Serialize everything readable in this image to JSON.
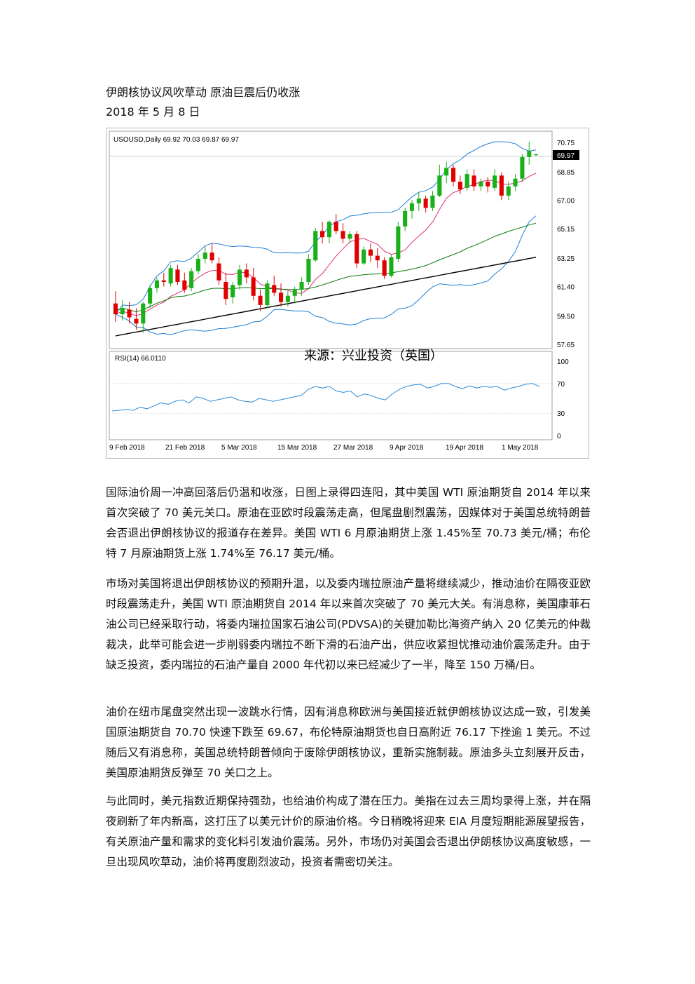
{
  "header": {
    "title": "伊朗核协议风吹草动 原油巨震后仍收涨",
    "date": "2018 年 5 月 8 日"
  },
  "chart_data": {
    "type": "candlestick",
    "symbol_label": "USOUSD,Daily  69.92 70.03 69.87 69.97",
    "current_price_label": "69.97",
    "watermark": "来源：兴业投资（英国）",
    "x_ticks": [
      "9 Feb 2018",
      "21 Feb 2018",
      "5 Mar 2018",
      "15 Mar 2018",
      "27 Mar 2018",
      "9 Apr 2018",
      "19 Apr 2018",
      "1 May 2018"
    ],
    "y_ticks": [
      "70.75",
      "68.85",
      "67.00",
      "65.15",
      "63.25",
      "61.40",
      "59.50",
      "57.65"
    ],
    "ylim": [
      57.65,
      70.75
    ],
    "candles": [
      {
        "o": 60.3,
        "h": 61.1,
        "l": 59.1,
        "c": 59.6
      },
      {
        "o": 59.6,
        "h": 60.5,
        "l": 59.2,
        "c": 60.0
      },
      {
        "o": 59.9,
        "h": 60.4,
        "l": 59.0,
        "c": 59.4
      },
      {
        "o": 59.3,
        "h": 60.0,
        "l": 58.6,
        "c": 59.0
      },
      {
        "o": 59.0,
        "h": 60.4,
        "l": 58.4,
        "c": 60.3
      },
      {
        "o": 60.3,
        "h": 61.5,
        "l": 60.0,
        "c": 61.3
      },
      {
        "o": 61.3,
        "h": 62.0,
        "l": 61.0,
        "c": 61.8
      },
      {
        "o": 61.8,
        "h": 62.3,
        "l": 61.4,
        "c": 61.7
      },
      {
        "o": 61.6,
        "h": 62.8,
        "l": 61.4,
        "c": 62.6
      },
      {
        "o": 62.5,
        "h": 62.8,
        "l": 61.5,
        "c": 61.7
      },
      {
        "o": 61.8,
        "h": 62.3,
        "l": 61.0,
        "c": 61.2
      },
      {
        "o": 61.3,
        "h": 62.6,
        "l": 61.1,
        "c": 62.4
      },
      {
        "o": 62.4,
        "h": 63.5,
        "l": 62.2,
        "c": 63.2
      },
      {
        "o": 63.2,
        "h": 64.0,
        "l": 62.9,
        "c": 63.6
      },
      {
        "o": 63.6,
        "h": 64.2,
        "l": 62.9,
        "c": 63.1
      },
      {
        "o": 62.9,
        "h": 63.3,
        "l": 61.5,
        "c": 61.8
      },
      {
        "o": 61.7,
        "h": 62.3,
        "l": 60.2,
        "c": 60.6
      },
      {
        "o": 60.7,
        "h": 61.7,
        "l": 60.3,
        "c": 61.5
      },
      {
        "o": 61.5,
        "h": 62.8,
        "l": 61.2,
        "c": 62.5
      },
      {
        "o": 62.5,
        "h": 62.9,
        "l": 61.6,
        "c": 62.0
      },
      {
        "o": 62.0,
        "h": 62.6,
        "l": 60.5,
        "c": 60.8
      },
      {
        "o": 60.8,
        "h": 61.2,
        "l": 59.8,
        "c": 60.2
      },
      {
        "o": 60.2,
        "h": 61.8,
        "l": 60.0,
        "c": 61.6
      },
      {
        "o": 61.5,
        "h": 62.1,
        "l": 60.8,
        "c": 61.0
      },
      {
        "o": 61.0,
        "h": 61.6,
        "l": 60.1,
        "c": 60.4
      },
      {
        "o": 60.4,
        "h": 61.1,
        "l": 60.1,
        "c": 60.8
      },
      {
        "o": 60.8,
        "h": 61.4,
        "l": 60.3,
        "c": 61.2
      },
      {
        "o": 61.2,
        "h": 62.0,
        "l": 60.8,
        "c": 61.7
      },
      {
        "o": 61.7,
        "h": 63.5,
        "l": 61.5,
        "c": 63.2
      },
      {
        "o": 63.1,
        "h": 65.2,
        "l": 63.0,
        "c": 65.0
      },
      {
        "o": 65.0,
        "h": 65.6,
        "l": 64.2,
        "c": 64.6
      },
      {
        "o": 64.6,
        "h": 65.7,
        "l": 64.2,
        "c": 65.6
      },
      {
        "o": 65.6,
        "h": 66.1,
        "l": 64.8,
        "c": 65.0
      },
      {
        "o": 65.0,
        "h": 65.5,
        "l": 64.2,
        "c": 64.5
      },
      {
        "o": 64.5,
        "h": 65.0,
        "l": 64.2,
        "c": 64.8
      },
      {
        "o": 64.8,
        "h": 65.0,
        "l": 62.6,
        "c": 62.9
      },
      {
        "o": 62.9,
        "h": 64.0,
        "l": 62.8,
        "c": 63.8
      },
      {
        "o": 63.8,
        "h": 64.2,
        "l": 63.0,
        "c": 63.4
      },
      {
        "o": 63.4,
        "h": 63.9,
        "l": 62.6,
        "c": 63.1
      },
      {
        "o": 63.1,
        "h": 63.3,
        "l": 61.9,
        "c": 62.1
      },
      {
        "o": 62.1,
        "h": 63.5,
        "l": 62.0,
        "c": 63.3
      },
      {
        "o": 63.2,
        "h": 65.6,
        "l": 63.0,
        "c": 65.3
      },
      {
        "o": 65.3,
        "h": 66.5,
        "l": 65.0,
        "c": 66.3
      },
      {
        "o": 66.3,
        "h": 67.0,
        "l": 65.8,
        "c": 66.8
      },
      {
        "o": 66.8,
        "h": 67.5,
        "l": 66.3,
        "c": 67.1
      },
      {
        "o": 67.1,
        "h": 67.3,
        "l": 66.2,
        "c": 66.5
      },
      {
        "o": 66.5,
        "h": 67.6,
        "l": 66.3,
        "c": 67.3
      },
      {
        "o": 67.3,
        "h": 69.3,
        "l": 67.2,
        "c": 68.6
      },
      {
        "o": 68.6,
        "h": 69.5,
        "l": 68.1,
        "c": 69.1
      },
      {
        "o": 69.1,
        "h": 69.3,
        "l": 67.9,
        "c": 68.2
      },
      {
        "o": 68.2,
        "h": 68.6,
        "l": 67.4,
        "c": 67.7
      },
      {
        "o": 67.8,
        "h": 69.0,
        "l": 67.6,
        "c": 68.7
      },
      {
        "o": 68.6,
        "h": 69.0,
        "l": 67.6,
        "c": 67.9
      },
      {
        "o": 67.9,
        "h": 68.4,
        "l": 67.6,
        "c": 68.2
      },
      {
        "o": 68.2,
        "h": 68.5,
        "l": 67.5,
        "c": 67.9
      },
      {
        "o": 67.8,
        "h": 69.0,
        "l": 67.6,
        "c": 68.6
      },
      {
        "o": 68.6,
        "h": 68.8,
        "l": 67.0,
        "c": 67.3
      },
      {
        "o": 67.3,
        "h": 68.2,
        "l": 67.0,
        "c": 67.9
      },
      {
        "o": 67.9,
        "h": 68.7,
        "l": 67.6,
        "c": 68.4
      },
      {
        "o": 68.4,
        "h": 70.0,
        "l": 68.2,
        "c": 69.8
      },
      {
        "o": 69.8,
        "h": 70.8,
        "l": 69.3,
        "c": 70.2
      },
      {
        "o": 69.92,
        "h": 70.03,
        "l": 69.87,
        "c": 69.97
      }
    ],
    "rsi_label": "RSI(14) 66.0110",
    "rsi_ticks": [
      "100",
      "70",
      "30",
      "0"
    ],
    "rsi_values": [
      33,
      34,
      35,
      34,
      38,
      36,
      40,
      44,
      42,
      46,
      48,
      44,
      52,
      50,
      46,
      48,
      50,
      52,
      48,
      46,
      45,
      50,
      48,
      46,
      48,
      50,
      52,
      54,
      62,
      66,
      64,
      66,
      60,
      58,
      60,
      52,
      56,
      54,
      50,
      48,
      56,
      62,
      66,
      68,
      69,
      64,
      66,
      70,
      70,
      66,
      63,
      67,
      64,
      66,
      65,
      66,
      61,
      64,
      66,
      69,
      70,
      66
    ]
  },
  "paragraphs": [
    "国际油价周一冲高回落后仍温和收涨，日图上录得四连阳，其中美国 WTI 原油期货自 2014 年以来首次突破了 70 美元关口。原油在亚欧时段震荡走高，但尾盘剧烈震荡，因媒体对于美国总统特朗普会否退出伊朗核协议的报道存在差异。美国 WTI 6 月原油期货上涨 1.45%至 70.73 美元/桶；布伦特 7 月原油期货上涨 1.74%至 76.17 美元/桶。",
    "市场对美国将退出伊朗核协议的预期升温，以及委内瑞拉原油产量将继续减少，推动油价在隔夜亚欧时段震荡走升，美国 WTI 原油期货自 2014 年以来首次突破了 70 美元大关。有消息称，美国康菲石油公司已经采取行动，将委内瑞拉国家石油公司(PDVSA)的关键加勒比海资产纳入 20 亿美元的仲裁裁决，此举可能会进一步削弱委内瑞拉不断下滑的石油产出，供应收紧担忧推动油价震荡走升。由于缺乏投资，委内瑞拉的石油产量自 2000 年代初以来已经减少了一半，降至 150 万桶/日。",
    "油价在纽市尾盘突然出现一波跳水行情，因有消息称欧洲与美国接近就伊朗核协议达成一致，引发美国原油期货自 70.70 快速下跌至 69.67，布伦特原油期货也自日高附近 76.17 下挫逾 1 美元。不过随后又有消息称，美国总统特朗普倾向于废除伊朗核协议，重新实施制裁。原油多头立刻展开反击，美国原油期货反弹至 70 关口之上。",
    "与此同时，美元指数近期保持强劲，也给油价构成了潜在压力。美指在过去三周均录得上涨，并在隔夜刷新了年内新高，这打压了以美元计价的原油价格。今日稍晚将迎来 EIA 月度短期能源展望报告，有关原油产量和需求的变化料引发油价震荡。另外，市场仍对美国会否退出伊朗核协议高度敏感，一旦出现风吹草动，油价将再度剧烈波动，投资者需密切关注。"
  ],
  "colors": {
    "bull": "#19b019",
    "bear": "#e00000",
    "bands": "#1f7fd6",
    "ma_short": "#e0307a",
    "ma_mid": "#0a7a0a",
    "ma_long": "#000000",
    "rsi": "#2a8ad8"
  }
}
